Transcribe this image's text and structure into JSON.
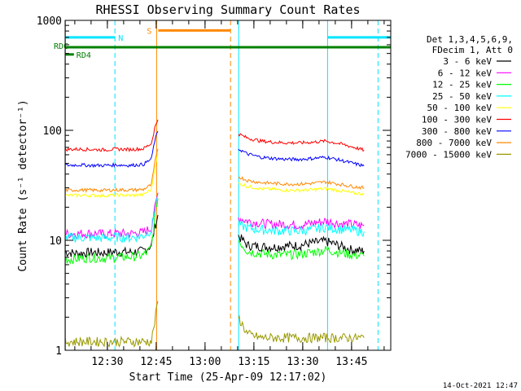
{
  "chart_data": {
    "type": "line",
    "title": "RHESSI Observing Summary Count Rates",
    "xlabel": "Start Time (25-Apr-09 12:17:02)",
    "ylabel": "Count Rate (s⁻¹ detector⁻¹)",
    "yscale": "log",
    "ylim": [
      1,
      1000
    ],
    "xlim_minutes_after_12_17_02": [
      0,
      100
    ],
    "x_tick_labels": [
      "12:30",
      "12:45",
      "13:00",
      "13:15",
      "13:30",
      "13:45"
    ],
    "x_tick_minutes": [
      12.97,
      27.97,
      42.97,
      57.97,
      72.97,
      87.97
    ],
    "y_tick_labels": [
      "1",
      "10",
      "100",
      "1000"
    ],
    "y_tick_values": [
      1,
      10,
      100,
      1000
    ],
    "grid": false,
    "legend": {
      "placement": "right",
      "header": [
        "Det 1,3,4,5,6,9,",
        "FDecim 1, Att 0"
      ]
    },
    "series": [
      {
        "name": "3 - 6 keV",
        "color": "#000000",
        "segments": [
          {
            "x": [
              0,
              4,
              8,
              12,
              16,
              20,
              24,
              26.5,
              27.5,
              28.5
            ],
            "y": [
              7.8,
              7.6,
              7.8,
              7.7,
              7.9,
              7.8,
              8,
              9,
              13,
              17
            ]
          },
          {
            "x": [
              53.2,
              56,
              60,
              64,
              68,
              72,
              76,
              80,
              84,
              88,
              91.8
            ],
            "y": [
              11,
              9,
              8.8,
              8.7,
              8.9,
              9,
              9.5,
              9.8,
              9,
              8.2,
              8
            ]
          }
        ]
      },
      {
        "name": "6 - 12 keV",
        "color": "#ff00ff",
        "segments": [
          {
            "x": [
              0,
              4,
              8,
              12,
              16,
              20,
              24,
              26.5,
              27.5,
              28.5
            ],
            "y": [
              11.5,
              11.5,
              11.6,
              11.4,
              11.6,
              11.5,
              11.8,
              13,
              20,
              27
            ]
          },
          {
            "x": [
              53.2,
              56,
              60,
              64,
              68,
              72,
              76,
              80,
              84,
              88,
              91.8
            ],
            "y": [
              16,
              15,
              14.3,
              14,
              14,
              13.8,
              14.3,
              15,
              14.2,
              14,
              13.5
            ]
          }
        ]
      },
      {
        "name": "12 - 25 keV",
        "color": "#00ff00",
        "segments": [
          {
            "x": [
              0,
              4,
              8,
              12,
              16,
              20,
              24,
              26.5,
              27.5,
              28.5
            ],
            "y": [
              6.7,
              6.8,
              7,
              6.9,
              7,
              7.1,
              7.3,
              8.5,
              16,
              24
            ]
          },
          {
            "x": [
              53.2,
              56,
              60,
              64,
              68,
              72,
              76,
              80,
              84,
              88,
              91.8
            ],
            "y": [
              10,
              8,
              7.6,
              7.4,
              7.4,
              7.5,
              7.8,
              8.2,
              7.8,
              7.4,
              7.2
            ]
          }
        ]
      },
      {
        "name": "25 - 50 keV",
        "color": "#00ffff",
        "segments": [
          {
            "x": [
              0,
              4,
              8,
              12,
              16,
              20,
              24,
              26.5,
              27.5,
              28.5
            ],
            "y": [
              10.5,
              10.6,
              10.6,
              10.5,
              10.7,
              10.6,
              11,
              12.5,
              19,
              26
            ]
          },
          {
            "x": [
              53.2,
              56,
              60,
              64,
              68,
              72,
              76,
              80,
              84,
              88,
              91.8
            ],
            "y": [
              14,
              13,
              12.5,
              12.3,
              12.2,
              12.2,
              12.6,
              13.2,
              12.7,
              12.4,
              12
            ]
          }
        ]
      },
      {
        "name": "50 - 100 keV",
        "color": "#ffff00",
        "segments": [
          {
            "x": [
              0,
              4,
              8,
              12,
              16,
              20,
              24,
              26.5,
              27.5,
              28.5
            ],
            "y": [
              25.5,
              25.7,
              25.6,
              25.5,
              25.8,
              25.6,
              26,
              29,
              45,
              62
            ]
          },
          {
            "x": [
              53.2,
              56,
              60,
              64,
              68,
              72,
              76,
              80,
              84,
              88,
              91.8
            ],
            "y": [
              33,
              31,
              29.5,
              29,
              28.5,
              28.5,
              28.8,
              29.5,
              28.5,
              27,
              26.5
            ]
          }
        ]
      },
      {
        "name": "100 - 300 keV",
        "color": "#ff0000",
        "segments": [
          {
            "x": [
              0,
              4,
              8,
              12,
              16,
              20,
              24,
              26.5,
              27.5,
              28.5
            ],
            "y": [
              67,
              67.5,
              67,
              66.5,
              67.5,
              67,
              68,
              76,
              105,
              125
            ]
          },
          {
            "x": [
              53.2,
              56,
              60,
              64,
              68,
              72,
              76,
              80,
              84,
              88,
              91.8
            ],
            "y": [
              93,
              85,
              80,
              78,
              77,
              77,
              78,
              80,
              76,
              71,
              66
            ]
          }
        ]
      },
      {
        "name": "300 - 800 keV",
        "color": "#0000ff",
        "segments": [
          {
            "x": [
              0,
              4,
              8,
              12,
              16,
              20,
              24,
              26.5,
              27.5,
              28.5
            ],
            "y": [
              48,
              48.5,
              48,
              48,
              48.5,
              48,
              49,
              55,
              80,
              98
            ]
          },
          {
            "x": [
              53.2,
              56,
              60,
              64,
              68,
              72,
              76,
              80,
              84,
              88,
              91.8
            ],
            "y": [
              68,
              61,
              57,
              55.5,
              54.5,
              54.5,
              55.5,
              57,
              54,
              50.5,
              47.5
            ]
          }
        ]
      },
      {
        "name": "800 - 7000 keV",
        "color": "#ff8800",
        "segments": [
          {
            "x": [
              0,
              4,
              8,
              12,
              16,
              20,
              24,
              26.5,
              27.5,
              28.5
            ],
            "y": [
              28.5,
              28.7,
              28.6,
              28.5,
              28.8,
              28.6,
              29,
              32,
              50,
              68
            ]
          },
          {
            "x": [
              53.2,
              56,
              60,
              64,
              68,
              72,
              76,
              80,
              84,
              88,
              91.8
            ],
            "y": [
              38,
              35,
              33.5,
              33,
              32.5,
              32.5,
              33,
              34,
              32.5,
              31,
              30
            ]
          }
        ]
      },
      {
        "name": "7000 - 15000 keV",
        "color": "#999900",
        "segments": [
          {
            "x": [
              0,
              4,
              8,
              12,
              16,
              20,
              24,
              26.5,
              27.5,
              28.5
            ],
            "y": [
              1.2,
              1.2,
              1.2,
              1.2,
              1.2,
              1.2,
              1.2,
              1.2,
              1.8,
              2.8
            ]
          },
          {
            "x": [
              53.2,
              56,
              60,
              64,
              68,
              72,
              76,
              80,
              84,
              88,
              91.8
            ],
            "y": [
              2,
              1.4,
              1.3,
              1.3,
              1.3,
              1.3,
              1.3,
              1.3,
              1.3,
              1.3,
              1.3
            ]
          }
        ]
      }
    ],
    "markers": [
      {
        "label": "N",
        "color": "#00e5ff",
        "x_start": 0,
        "x_end": 15.3,
        "y": 700
      },
      {
        "label": "",
        "color": "#00e5ff",
        "x_start": 80.6,
        "x_end": 100,
        "y": 700
      },
      {
        "label": "S",
        "color": "#ff8800",
        "x_start": 28.6,
        "x_end": 50.8,
        "y": 810
      },
      {
        "label": "RDC",
        "color": "#008000",
        "x_start": 0,
        "x_end": 100,
        "y": 570
      },
      {
        "label": "RD4",
        "color": "#008000",
        "x_start": 0,
        "x_end": 2.7,
        "y": 490
      }
    ],
    "vertical_lines": [
      {
        "x": 0.1,
        "color": "#00e5ff",
        "style": "solid"
      },
      {
        "x": 15.3,
        "color": "#00e5ff",
        "style": "dashed"
      },
      {
        "x": 28.1,
        "color": "#ff8800",
        "style": "solid"
      },
      {
        "x": 50.8,
        "color": "#ff8800",
        "style": "dashed"
      },
      {
        "x": 53.3,
        "color": "#00e5ff",
        "style": "solid"
      },
      {
        "x": 80.6,
        "color": "#00e5ff",
        "style": "solid"
      },
      {
        "x": 96.1,
        "color": "#00e5ff",
        "style": "dashed"
      }
    ],
    "footer_date": "14-Oct-2021 12:47"
  }
}
